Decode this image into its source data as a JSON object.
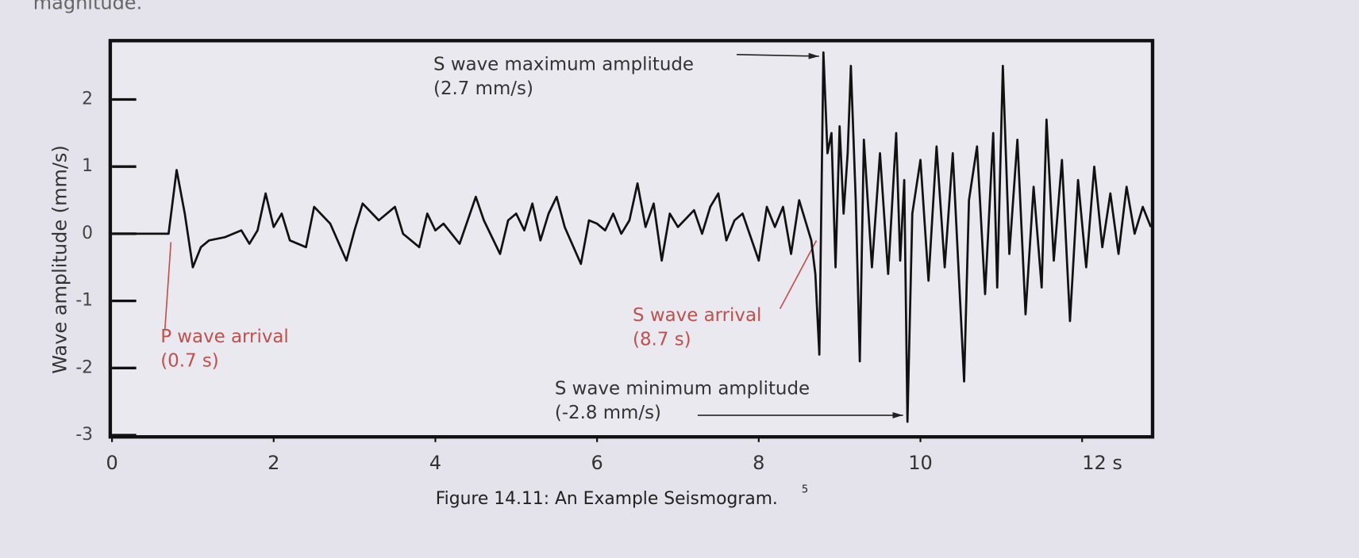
{
  "page_text": "magnitude.",
  "chart_data": {
    "type": "line",
    "y_label": "Wave amplitude (mm/s)",
    "caption": "Figure 14.11: An Example Seismogram.",
    "caption_note": "5",
    "annotations": [
      {
        "lines": [
          "S wave maximum amplitude",
          "(2.7 mm/s)"
        ],
        "color": "#333333"
      },
      {
        "lines": [
          "P wave arrival",
          "(0.7 s)"
        ],
        "color": "#c0504d"
      },
      {
        "lines": [
          "S wave arrival",
          "(8.7 s)"
        ],
        "color": "#c0504d"
      },
      {
        "lines": [
          "S wave minimum amplitude",
          "(-2.8 mm/s)"
        ],
        "color": "#333333"
      }
    ],
    "color": "#111111",
    "x": [
      0,
      0.7,
      0.8,
      0.9,
      1.0,
      1.1,
      1.2,
      1.4,
      1.6,
      1.7,
      1.8,
      1.9,
      2.0,
      2.1,
      2.2,
      2.4,
      2.5,
      2.7,
      2.9,
      3.0,
      3.1,
      3.3,
      3.5,
      3.6,
      3.8,
      3.9,
      4.0,
      4.1,
      4.3,
      4.5,
      4.6,
      4.8,
      4.9,
      5.0,
      5.1,
      5.2,
      5.3,
      5.4,
      5.5,
      5.6,
      5.8,
      5.9,
      6.0,
      6.1,
      6.2,
      6.3,
      6.4,
      6.5,
      6.6,
      6.7,
      6.8,
      6.9,
      7.0,
      7.2,
      7.3,
      7.4,
      7.5,
      7.6,
      7.7,
      7.8,
      8.0,
      8.1,
      8.2,
      8.3,
      8.4,
      8.5,
      8.65,
      8.7,
      8.75,
      8.8,
      8.85,
      8.9,
      8.95,
      9.0,
      9.05,
      9.1,
      9.14,
      9.2,
      9.25,
      9.3,
      9.4,
      9.5,
      9.6,
      9.7,
      9.75,
      9.8,
      9.84,
      9.9,
      10.0,
      10.1,
      10.2,
      10.3,
      10.4,
      10.54,
      10.6,
      10.7,
      10.8,
      10.9,
      10.95,
      11.02,
      11.1,
      11.2,
      11.3,
      11.4,
      11.5,
      11.56,
      11.65,
      11.75,
      11.85,
      11.95,
      12.05,
      12.15,
      12.25,
      12.35,
      12.45,
      12.55,
      12.65,
      12.75,
      12.85
    ],
    "values": [
      0,
      0,
      0.95,
      0.3,
      -0.5,
      -0.2,
      -0.1,
      -0.05,
      0.05,
      -0.15,
      0.05,
      0.6,
      0.1,
      0.3,
      -0.1,
      -0.2,
      0.4,
      0.15,
      -0.4,
      0.05,
      0.45,
      0.2,
      0.4,
      0.0,
      -0.2,
      0.3,
      0.05,
      0.15,
      -0.15,
      0.55,
      0.2,
      -0.3,
      0.2,
      0.3,
      0.05,
      0.45,
      -0.1,
      0.3,
      0.55,
      0.1,
      -0.45,
      0.2,
      0.15,
      0.05,
      0.3,
      0.0,
      0.2,
      0.75,
      0.1,
      0.45,
      -0.4,
      0.3,
      0.1,
      0.35,
      0.0,
      0.4,
      0.6,
      -0.1,
      0.2,
      0.3,
      -0.4,
      0.4,
      0.1,
      0.4,
      -0.3,
      0.5,
      -0.1,
      -0.6,
      -1.8,
      2.7,
      1.2,
      1.5,
      -0.5,
      1.6,
      0.3,
      1.2,
      2.5,
      0.5,
      -1.9,
      1.4,
      -0.5,
      1.2,
      -0.6,
      1.5,
      -0.4,
      0.8,
      -2.8,
      0.3,
      1.1,
      -0.7,
      1.3,
      -0.5,
      1.2,
      -2.2,
      0.5,
      1.3,
      -0.9,
      1.5,
      -0.8,
      2.5,
      -0.3,
      1.4,
      -1.2,
      0.7,
      -0.8,
      1.7,
      -0.4,
      1.1,
      -1.3,
      0.8,
      -0.5,
      1.0,
      -0.2,
      0.6,
      -0.3,
      0.7,
      0.0,
      0.4,
      0.1
    ],
    "xlim": [
      0,
      12.85
    ],
    "ylim": [
      -3,
      2.85
    ],
    "xticks": [
      0,
      2,
      4,
      6,
      8,
      10,
      {
        "value": 12,
        "label": "12 s"
      }
    ],
    "yticks": [
      -3,
      -2,
      -1,
      0,
      1,
      2
    ]
  }
}
